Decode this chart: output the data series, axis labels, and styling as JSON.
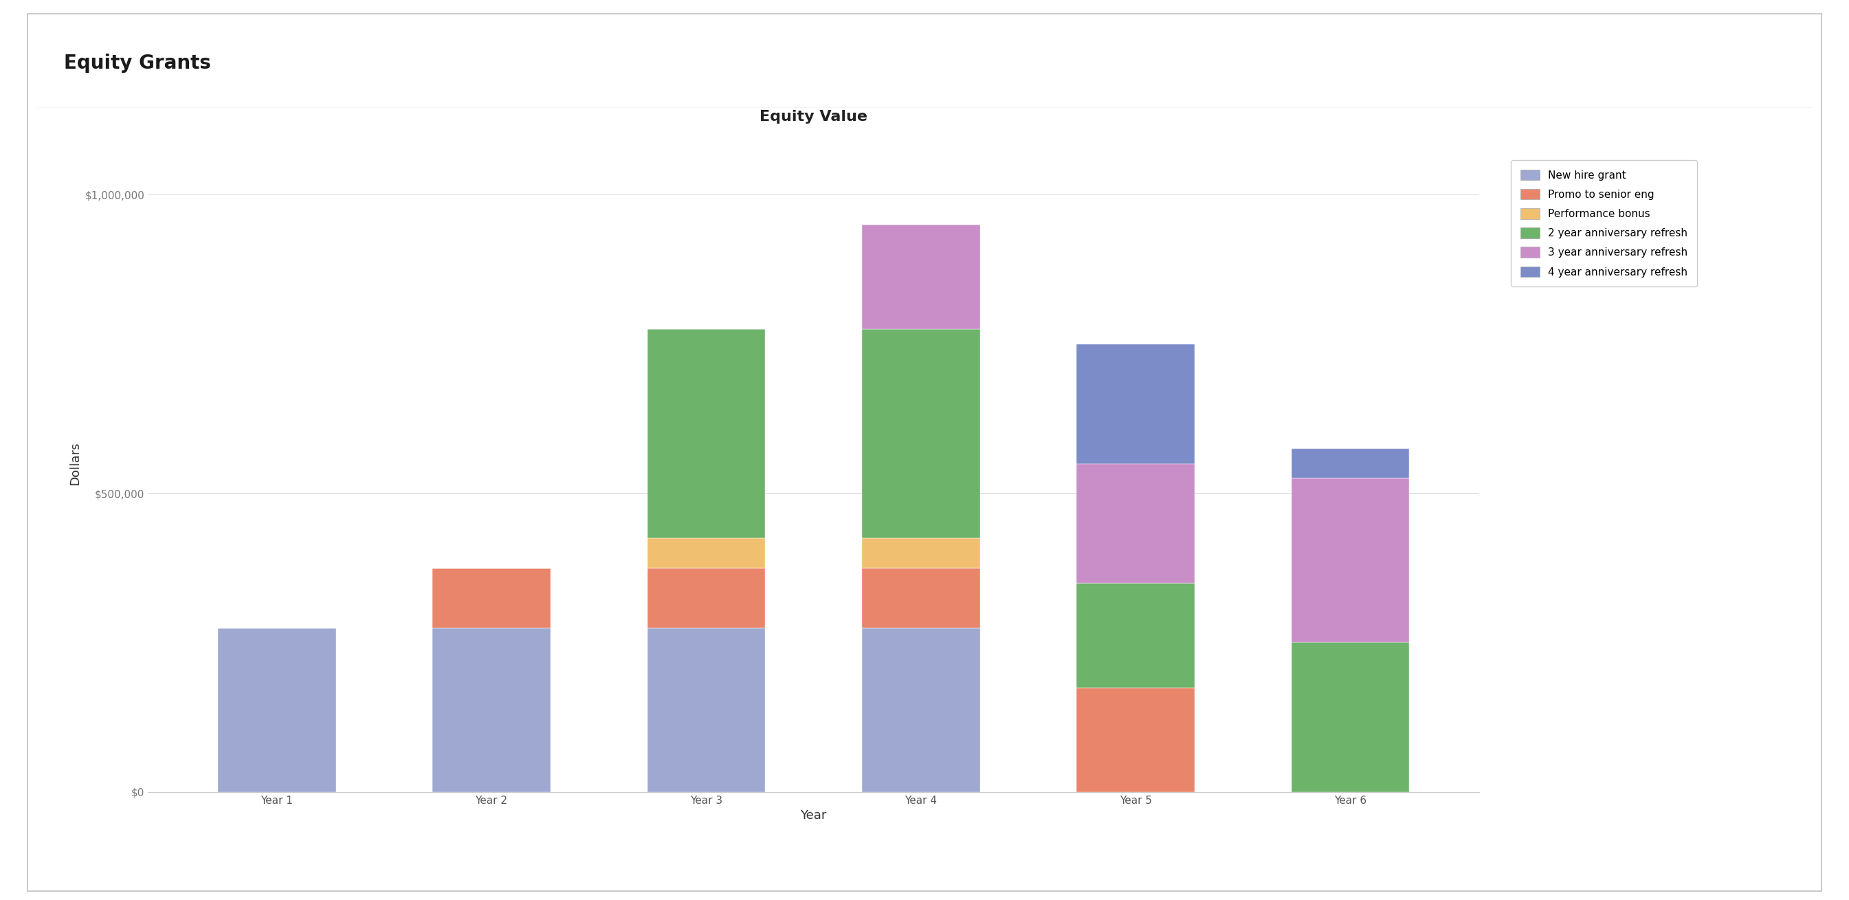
{
  "title": "Equity Value",
  "header_title": "Equity Grants",
  "xlabel": "Year",
  "ylabel": "Dollars",
  "categories": [
    "Year 1",
    "Year 2",
    "Year 3",
    "Year 4",
    "Year 5",
    "Year 6"
  ],
  "series": {
    "New hire grant": [
      275000,
      275000,
      275000,
      275000,
      0,
      0
    ],
    "Promo to senior eng": [
      0,
      100000,
      100000,
      100000,
      175000,
      0
    ],
    "Performance bonus": [
      0,
      0,
      50000,
      50000,
      0,
      0
    ],
    "2 year anniversary refresh": [
      0,
      0,
      350000,
      350000,
      175000,
      250000
    ],
    "3 year anniversary refresh": [
      0,
      0,
      0,
      175000,
      200000,
      275000
    ],
    "4 year anniversary refresh": [
      0,
      0,
      0,
      0,
      200000,
      50000
    ]
  },
  "colors": {
    "New hire grant": "#9EA8D0",
    "Promo to senior eng": "#E8856A",
    "Performance bonus": "#F0C070",
    "2 year anniversary refresh": "#6DB36A",
    "3 year anniversary refresh": "#C98DC8",
    "4 year anniversary refresh": "#7B8CC8"
  },
  "ylim": [
    0,
    1100000
  ],
  "yticks": [
    0,
    500000,
    1000000
  ],
  "yticklabels": [
    "$0",
    "$500,000",
    "$1,000,000"
  ],
  "background_color": "#ffffff",
  "panel_bg": "#f5f5f5",
  "grid_color": "#e0e0e0",
  "bar_width": 0.55,
  "title_fontsize": 16,
  "axis_label_fontsize": 13,
  "tick_fontsize": 11,
  "legend_fontsize": 11,
  "header_fontsize": 20
}
